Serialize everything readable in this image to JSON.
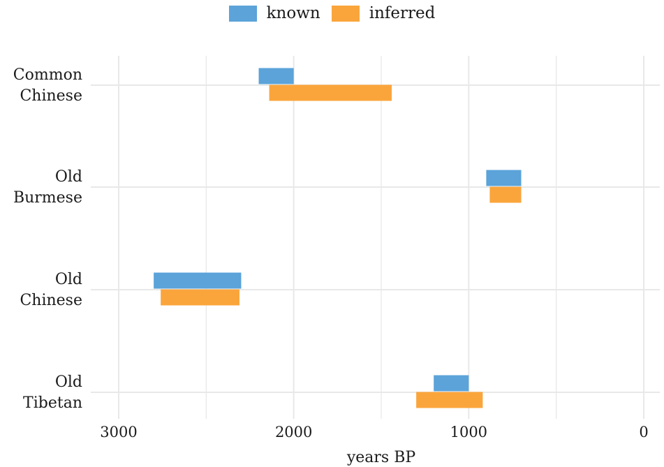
{
  "chart_data": {
    "type": "bar",
    "orientation": "horizontal-range",
    "xlabel": "years BP",
    "x_reversed": true,
    "xlim": [
      3000,
      0
    ],
    "xticks": [
      "3000",
      "2000",
      "1000",
      "0"
    ],
    "grid": true,
    "legend_position": "top-center",
    "categories": [
      [
        "Common",
        "Chinese"
      ],
      [
        "Old",
        "Burmese"
      ],
      [
        "Old",
        "Chinese"
      ],
      [
        "Old",
        "Tibetan"
      ]
    ],
    "series": [
      {
        "name": "known",
        "color": "#5ba3d9",
        "ranges": [
          [
            2200,
            2000
          ],
          [
            900,
            700
          ],
          [
            2800,
            2300
          ],
          [
            1200,
            1000
          ]
        ]
      },
      {
        "name": "inferred",
        "color": "#faa53c",
        "ranges": [
          [
            2140,
            1440
          ],
          [
            880,
            700
          ],
          [
            2760,
            2310
          ],
          [
            1300,
            920
          ]
        ]
      }
    ]
  }
}
